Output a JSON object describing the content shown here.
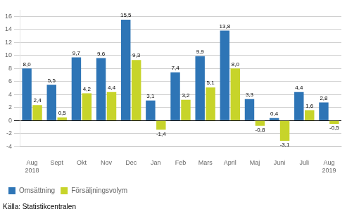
{
  "chart_data": {
    "type": "bar",
    "categories": [
      "Aug\n2018",
      "Sept",
      "Okt",
      "Nov",
      "Dec",
      "Jan",
      "Feb",
      "Mars",
      "April",
      "Maj",
      "Juni",
      "Juli",
      "Aug\n2019"
    ],
    "series": [
      {
        "name": "Omsättning",
        "color": "#2E75B6",
        "values": [
          8.0,
          5.5,
          9.7,
          9.6,
          15.5,
          3.1,
          7.4,
          9.9,
          13.8,
          3.3,
          0.4,
          4.4,
          2.8
        ],
        "value_labels": [
          "8,0",
          "5,5",
          "9,7",
          "9,6",
          "15,5",
          "3,1",
          "7,4",
          "9,9",
          "13,8",
          "3,3",
          "0,4",
          "4,4",
          "2,8"
        ]
      },
      {
        "name": "Försäljningsvolym",
        "color": "#C7D42A",
        "values": [
          2.4,
          0.5,
          4.2,
          4.4,
          9.3,
          -1.4,
          3.2,
          5.1,
          8.0,
          -0.8,
          -3.1,
          1.6,
          -0.5
        ],
        "value_labels": [
          "2,4",
          "0,5",
          "4,2",
          "4,4",
          "9,3",
          "-1,4",
          "3,2",
          "5,1",
          "8,0",
          "-0,8",
          "-3,1",
          "1,6",
          "-0,5"
        ]
      }
    ],
    "ylim": [
      -4,
      17
    ],
    "yticks": [
      -4,
      -2,
      0,
      2,
      4,
      6,
      8,
      10,
      12,
      14,
      16
    ],
    "grid": true,
    "legend": "bottom",
    "data_labels": true,
    "annotations": [
      "Källa: Statistikcentralen"
    ]
  }
}
